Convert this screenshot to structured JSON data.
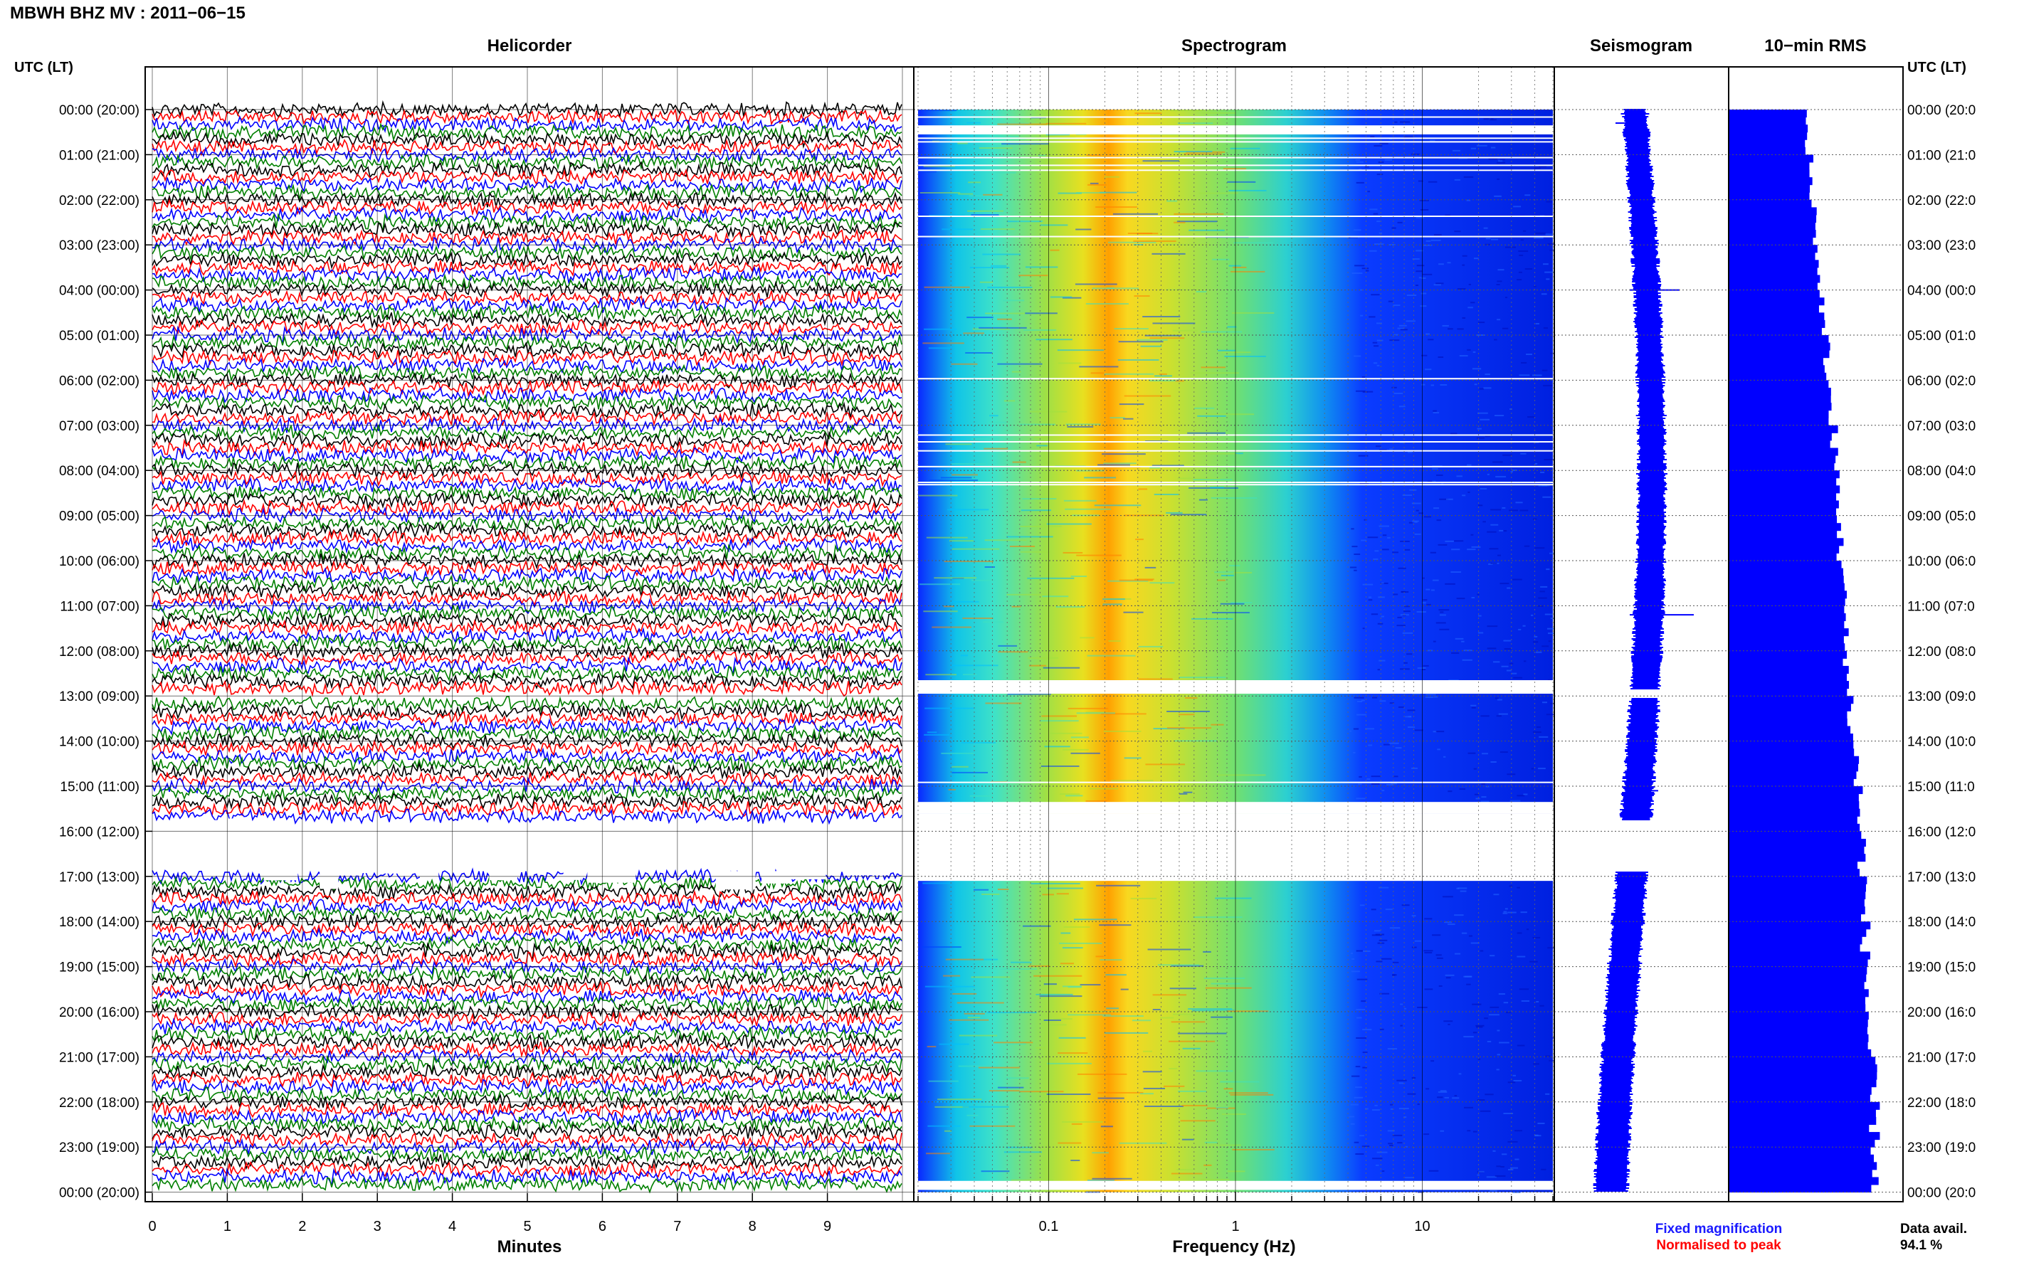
{
  "header": {
    "title": "MBWH BHZ MV : 2011−06−15"
  },
  "left_axis_title": "UTC (LT)",
  "right_axis_title": "UTC (LT)",
  "time_labels": [
    "00:00 (20:00)",
    "01:00 (21:00)",
    "02:00 (22:00)",
    "03:00 (23:00)",
    "04:00 (00:00)",
    "05:00 (01:00)",
    "06:00 (02:00)",
    "07:00 (03:00)",
    "08:00 (04:00)",
    "09:00 (05:00)",
    "10:00 (06:00)",
    "11:00 (07:00)",
    "12:00 (08:00)",
    "13:00 (09:00)",
    "14:00 (10:00)",
    "15:00 (11:00)",
    "16:00 (12:00)",
    "17:00 (13:00)",
    "18:00 (14:00)",
    "19:00 (15:00)",
    "20:00 (16:00)",
    "21:00 (17:00)",
    "22:00 (18:00)",
    "23:00 (19:00)",
    "00:00 (20:00)"
  ],
  "right_time_labels": [
    "00:00 (20:0",
    "01:00 (21:0",
    "02:00 (22:0",
    "03:00 (23:0",
    "04:00 (00:0",
    "05:00 (01:0",
    "06:00 (02:0",
    "07:00 (03:0",
    "08:00 (04:0",
    "09:00 (05:0",
    "10:00 (06:0",
    "11:00 (07:0",
    "12:00 (08:0",
    "13:00 (09:0",
    "14:00 (10:0",
    "15:00 (11:0",
    "16:00 (12:0",
    "17:00 (13:0",
    "18:00 (14:0",
    "19:00 (15:0",
    "20:00 (16:0",
    "21:00 (17:0",
    "22:00 (18:0",
    "23:00 (19:0",
    "00:00 (20:0"
  ],
  "legend": {
    "fixed": "Fixed magnification",
    "normalised": "Normalised to peak",
    "fixed_color": "#1a1aff",
    "normalised_color": "#ff0000"
  },
  "data_availability": {
    "label": "Data avail.",
    "value": "94.1 %"
  },
  "chart_data": [
    {
      "type": "line",
      "panel": "helicorder",
      "title": "Helicorder",
      "xlabel": "Minutes",
      "ylabel": "UTC (LT)",
      "xlim": [
        0,
        10
      ],
      "x_ticks": [
        "0",
        "1",
        "2",
        "3",
        "4",
        "5",
        "6",
        "7",
        "8",
        "9"
      ],
      "trace_colors": [
        "#000000",
        "#ff0000",
        "#0000ff",
        "#008000"
      ],
      "lines_per_hour": 6,
      "gaps": [
        {
          "hour_start": 12.85,
          "hour_end": 13.05,
          "minute_start": 0,
          "minute_end": 10
        },
        {
          "hour_start": 15.75,
          "hour_end": 16.9,
          "minute_start": 0,
          "minute_end": 10
        }
      ]
    },
    {
      "type": "heatmap",
      "panel": "spectrogram",
      "title": "Spectrogram",
      "xlabel": "Frequency (Hz)",
      "x_scale": "log",
      "xlim": [
        0.02,
        50
      ],
      "x_tick_labels": [
        "0.1",
        "1",
        "10"
      ],
      "colormap": [
        "#0000ff",
        "#00c0ff",
        "#40e0c0",
        "#a0e040",
        "#e0e000",
        "#ff8000",
        "#ff0000"
      ],
      "peak_frequency_hz": 0.25,
      "gaps_hours": [
        [
          0.35,
          0.55
        ],
        [
          12.65,
          12.95
        ],
        [
          15.35,
          15.6
        ],
        [
          15.6,
          17.1
        ],
        [
          23.75,
          23.95
        ]
      ]
    },
    {
      "type": "line",
      "panel": "seismogram",
      "title": "Seismogram",
      "color": "#0000ff",
      "gaps_hours": [
        [
          12.85,
          13.05
        ],
        [
          15.75,
          16.9
        ]
      ]
    },
    {
      "type": "bar",
      "panel": "rms",
      "title": "10−min RMS",
      "orientation": "horizontal",
      "color": "#0000ff",
      "bin_minutes": 10,
      "values_relative": [
        0.52,
        0.55,
        0.58,
        0.6,
        0.63,
        0.66,
        0.68,
        0.71,
        0.73,
        0.75,
        0.77,
        0.78,
        0.8,
        0.82,
        0.86,
        0.88,
        0.9,
        0.91,
        0.92,
        0.93,
        0.94,
        0.96,
        0.98,
        0.99,
        1.0
      ]
    }
  ]
}
